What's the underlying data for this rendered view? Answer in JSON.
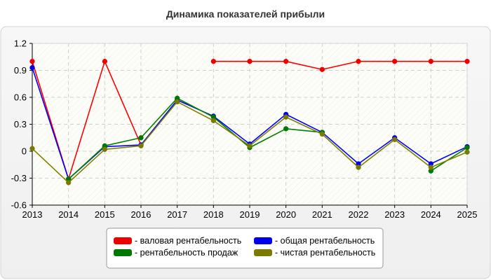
{
  "chart_data": {
    "type": "line",
    "title": "Динамика показателей прибыли",
    "xlabel": "",
    "ylabel": "",
    "categories": [
      "2013",
      "2014",
      "2015",
      "2016",
      "2017",
      "2018",
      "2019",
      "2020",
      "2021",
      "2022",
      "2023",
      "2024",
      "2025"
    ],
    "ylim": [
      -0.6,
      1.2
    ],
    "yticks": [
      "1.2",
      "0.9",
      "0.6",
      "0.3",
      "0",
      "-0.3",
      "-0.6"
    ],
    "grid": true,
    "legend_position": "bottom-center",
    "series": [
      {
        "name": "- валовая рентабельность",
        "color": "#ff0000",
        "dot_color": "#ee0000",
        "values": [
          1.0,
          -0.31,
          1.0,
          0.07,
          null,
          1.0,
          1.0,
          1.0,
          0.91,
          1.0,
          1.0,
          1.0,
          1.0
        ]
      },
      {
        "name": "- общая рентабельность",
        "color": "#0000ff",
        "dot_color": "#0000ee",
        "values": [
          0.93,
          -0.31,
          0.05,
          0.07,
          0.57,
          0.39,
          0.08,
          0.41,
          0.21,
          -0.14,
          0.15,
          -0.14,
          0.05
        ]
      },
      {
        "name": "- рентабельность продаж",
        "color": "#008000",
        "dot_color": "#007700",
        "values": [
          null,
          -0.31,
          0.06,
          0.15,
          0.59,
          0.38,
          0.04,
          0.25,
          0.21,
          null,
          null,
          -0.22,
          0.04
        ]
      },
      {
        "name": "- чистая рентабельность",
        "color": "#808000",
        "dot_color": "#7a7a00",
        "values": [
          0.03,
          -0.35,
          0.02,
          0.06,
          0.55,
          0.34,
          0.06,
          0.38,
          0.19,
          -0.18,
          0.13,
          -0.18,
          -0.01
        ]
      }
    ]
  }
}
